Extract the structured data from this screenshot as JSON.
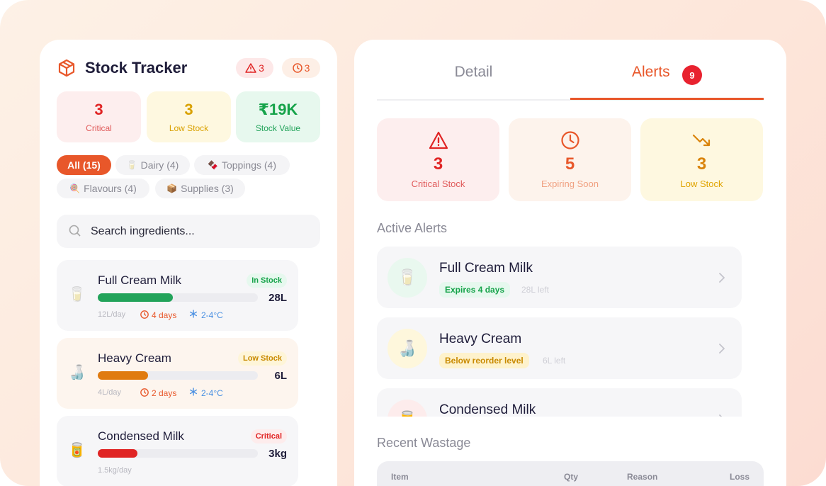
{
  "stock_tracker": {
    "title": "Stock Tracker",
    "badges": [
      {
        "count": 3
      },
      {
        "count": 3
      }
    ],
    "summary": [
      {
        "value": 3,
        "label": "Critical"
      },
      {
        "value": 3,
        "label": "Low Stock"
      },
      {
        "value": "₹19K",
        "label": "Stock Value"
      }
    ],
    "filters": [
      {
        "label": "All (15)"
      },
      {
        "icon": "🥛",
        "label": "Dairy (4)"
      },
      {
        "icon": "🍫",
        "label": "Toppings (4)"
      },
      {
        "icon": "🍭",
        "label": "Flavours (4)"
      },
      {
        "icon": "📦",
        "label": "Supplies (3)"
      }
    ],
    "search_placeholder": "Search ingredients...",
    "items": [
      {
        "icon": "🥛",
        "name": "Full Cream Milk",
        "status": "In Stock",
        "quantity": "28L",
        "usage": "12L/day",
        "expiry": "4 days",
        "storage": "2-4°C"
      },
      {
        "icon": "🍶",
        "name": "Heavy Cream",
        "status": "Low Stock",
        "quantity": "6L",
        "usage": "4L/day",
        "expiry": "2 days",
        "storage": "2-4°C"
      },
      {
        "icon": "🥫",
        "name": "Condensed Milk",
        "status": "Critical",
        "quantity": "3kg",
        "usage": "1.5kg/day"
      }
    ]
  },
  "detail_panel": {
    "tabs": [
      "Detail",
      "Alerts"
    ],
    "alerts_count": 9,
    "alert_summary": [
      {
        "value": 3,
        "label": "Critical Stock"
      },
      {
        "value": 5,
        "label": "Expiring Soon"
      },
      {
        "value": 3,
        "label": "Low Stock"
      }
    ],
    "active_alerts_title": "Active Alerts",
    "active_alerts": [
      {
        "icon": "🥛",
        "name": "Full Cream Milk",
        "tag": "Expires 4 days",
        "note": "28L left"
      },
      {
        "icon": "🍶",
        "name": "Heavy Cream",
        "tag": "Below reorder level",
        "note": "6L left"
      },
      {
        "icon": "🥫",
        "name": "Condensed Milk"
      }
    ],
    "recent_wastage_title": "Recent Wastage",
    "wastage_columns": [
      "Item",
      "Qty",
      "Reason",
      "Loss"
    ]
  }
}
